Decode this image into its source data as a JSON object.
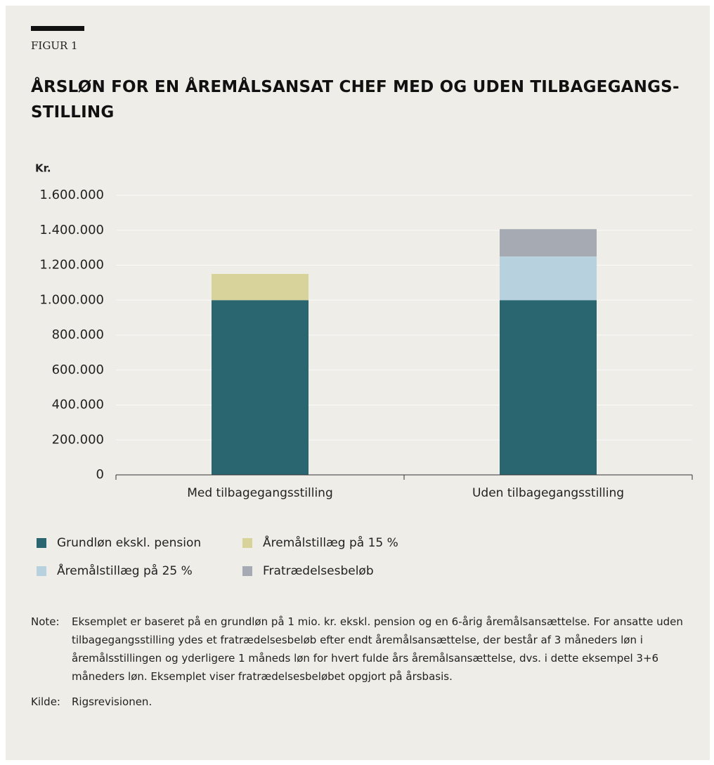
{
  "figure_label": "FIGUR 1",
  "chart_data": {
    "type": "stacked_bar",
    "title": "ÅRSLØN FOR EN ÅREMÅLSANSAT CHEF MED OG UDEN TILBAGEGANGS-STILLING",
    "y_label": "Kr.",
    "categories": [
      "Med tilbagegangsstilling",
      "Uden tilbagegangsstilling"
    ],
    "series": [
      {
        "name": "Grundløn ekskl. pension",
        "color": "#29666f",
        "values": [
          1000000,
          1000000
        ]
      },
      {
        "name": "Åremålstillæg på 15 %",
        "color": "#d8d29b",
        "values": [
          150000,
          null
        ]
      },
      {
        "name": "Åremålstillæg på 25 %",
        "color": "#b8d1df",
        "values": [
          null,
          250000
        ]
      },
      {
        "name": "Fratrædelsesbeløb",
        "color": "#a5aab3",
        "values": [
          null,
          156250
        ]
      }
    ],
    "ylim": [
      0,
      1600000
    ],
    "yticks": [
      0,
      {
        "value": 200000,
        "label": "200.000"
      },
      {
        "value": 400000,
        "label": "400.000"
      },
      {
        "value": 600000,
        "label": "600.000"
      },
      {
        "value": 800000,
        "label": "800.000"
      },
      {
        "value": 1000000,
        "label": "1.000.000"
      },
      {
        "value": 1200000,
        "label": "1.200.000"
      },
      {
        "value": 1400000,
        "label": "1.400.000"
      },
      {
        "value": 1600000,
        "label": "1.600.000"
      }
    ],
    "grid": true
  },
  "note": {
    "label": "Note:",
    "text": "Eksemplet er baseret på en grundløn på 1 mio. kr. ekskl. pension og en 6-årig åremålsansættelse. For ansatte uden tilbagegangsstilling ydes et fratrædelsesbeløb efter endt åremålsansættelse, der består af 3 måneders løn i åremålsstillingen og yderligere 1 måneds løn for hvert fulde års åremålsansættelse, dvs. i dette eksempel 3+6 måneders løn. Eksemplet viser fratrædelsesbeløbet opgjort på årsbasis."
  },
  "source": {
    "label": "Kilde:",
    "text": "Rigsrevisionen."
  }
}
